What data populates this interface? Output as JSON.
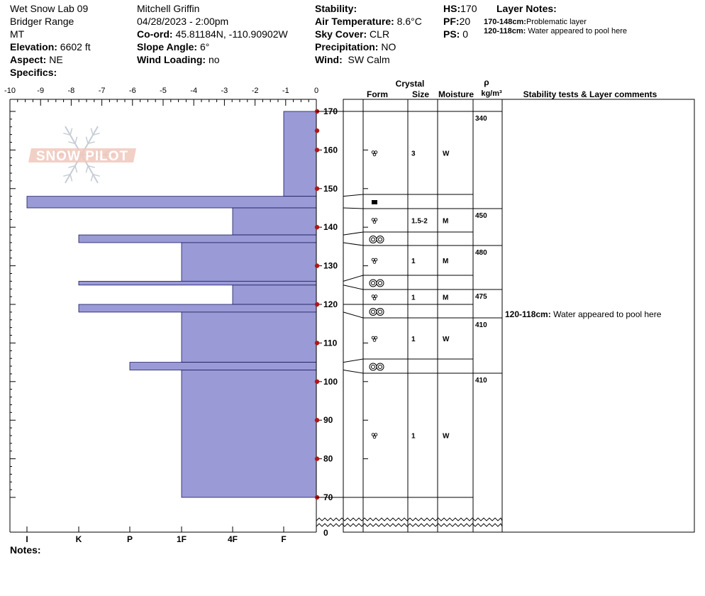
{
  "header": {
    "site": "Wet Snow Lab 09",
    "range": "Bridger Range",
    "state": "MT",
    "elevation_label": "Elevation:",
    "elevation_value": "6602 ft",
    "aspect_label": "Aspect:",
    "aspect_value": "NE",
    "specifics_label": "Specifics:",
    "observer": "Mitchell Griffin",
    "datetime": "04/28/2023 - 2:00pm",
    "coord_label": "Co-ord:",
    "coord_value": "45.81184N, -110.90902W",
    "slope_label": "Slope Angle:",
    "slope_value": "6°",
    "windload_label": "Wind Loading:",
    "windload_value": "no",
    "stability_label": "Stability:",
    "airtemp_label": "Air Temperature:",
    "airtemp_value": "8.6°C",
    "sky_label": "Sky Cover:",
    "sky_value": "CLR",
    "precip_label": "Precipitation:",
    "precip_value": "NO",
    "wind_label": "Wind:",
    "wind_value": "SW Calm",
    "hs_label": "HS:",
    "hs_value": "170",
    "pf_label": "PF:",
    "pf_value": "20",
    "ps_label": "PS:",
    "ps_value": "0",
    "layer_notes_title": "Layer Notes:",
    "layer_notes": [
      {
        "range": "170-148cm:",
        "text": "Problematic layer"
      },
      {
        "range": "120-118cm:",
        "text": "Water appeared to pool here"
      }
    ]
  },
  "logo_text": "SNOW PILOT",
  "notes_label": "Notes:",
  "colors": {
    "bar_fill": "#9a9ad6",
    "marker": "#b01818",
    "logo": "#f0c8bc"
  },
  "table_headers": {
    "crystal": "Crystal",
    "form": "Form",
    "size": "Size",
    "moisture": "Moisture",
    "rho": "ρ",
    "density_unit": "kg/m³",
    "comments": "Stability tests & Layer comments"
  },
  "chart_data": {
    "type": "bar",
    "orientation": "horizontal",
    "x_ticks": [
      -10,
      -9,
      -8,
      -7,
      -6,
      -5,
      -4,
      -3,
      -2,
      -1,
      0
    ],
    "x_tick_labels": [
      "-10",
      "-9",
      "-8",
      "-7",
      "-6",
      "-5",
      "-4",
      "-3",
      "-2",
      "-1",
      "0"
    ],
    "xlim": [
      -10,
      0
    ],
    "hardness_labels": [
      "I",
      "K",
      "P",
      "1F",
      "4F",
      "F"
    ],
    "ylim": [
      70,
      172
    ],
    "height_ticks": [
      170,
      160,
      150,
      140,
      130,
      120,
      110,
      100,
      90,
      80,
      70
    ],
    "height_tick_labels": [
      "170",
      "160",
      "150",
      "140",
      "130",
      "120",
      "110",
      "100",
      "90",
      "80",
      "70"
    ],
    "ground_label": "0",
    "temperature_markers": [
      170,
      165,
      160,
      150,
      140,
      130,
      120,
      110,
      100,
      90,
      80,
      70
    ],
    "layers": [
      {
        "top": 170,
        "bottom": 148,
        "hardness": "F",
        "form": "round",
        "size": "3",
        "moisture": "W"
      },
      {
        "top": 148,
        "bottom": 145,
        "hardness": "I",
        "form": "ice",
        "size": "",
        "moisture": ""
      },
      {
        "top": 145,
        "bottom": 138,
        "hardness": "4F",
        "form": "round",
        "size": "1.5-2",
        "moisture": "M"
      },
      {
        "top": 138,
        "bottom": 136,
        "hardness": "K",
        "form": "melt",
        "size": "",
        "moisture": ""
      },
      {
        "top": 136,
        "bottom": 126,
        "hardness": "1F",
        "form": "round",
        "size": "1",
        "moisture": "M"
      },
      {
        "top": 126,
        "bottom": 125,
        "hardness": "K",
        "form": "melt",
        "size": "",
        "moisture": ""
      },
      {
        "top": 125,
        "bottom": 120,
        "hardness": "4F",
        "form": "round",
        "size": "1",
        "moisture": "M"
      },
      {
        "top": 120,
        "bottom": 118,
        "hardness": "K",
        "form": "melt",
        "size": "",
        "moisture": ""
      },
      {
        "top": 118,
        "bottom": 105,
        "hardness": "1F",
        "form": "round",
        "size": "1",
        "moisture": "W"
      },
      {
        "top": 105,
        "bottom": 103,
        "hardness": "P",
        "form": "melt",
        "size": "",
        "moisture": ""
      },
      {
        "top": 103,
        "bottom": 70,
        "hardness": "1F",
        "form": "round",
        "size": "1",
        "moisture": "W"
      }
    ],
    "densities": [
      {
        "height": 170,
        "value": "340"
      },
      {
        "height": 145,
        "value": "450"
      },
      {
        "height": 136,
        "value": "480"
      },
      {
        "height": 125,
        "value": "475"
      },
      {
        "height": 118,
        "value": "410"
      },
      {
        "height": 103,
        "value": "410"
      }
    ],
    "layer_comment": {
      "height": 118,
      "range": "120-118cm:",
      "text": "Water appeared to pool here"
    }
  }
}
